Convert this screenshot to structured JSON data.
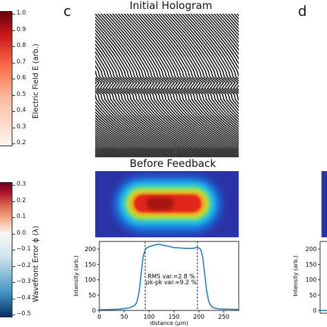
{
  "labels": {
    "panel_c": "c",
    "panel_d": "d",
    "hologram_title": "Initial Hologram",
    "beam_title": "Before Feedback"
  },
  "colorbar_top": {
    "label": "Electric Field E (arb.)",
    "ticks": [
      "1.0",
      "0.9",
      "0.8",
      "0.7",
      "0.6",
      "0.5",
      "0.4",
      "0.3",
      "0.2"
    ],
    "color_low": "#ffffff",
    "color_high": "#67000d"
  },
  "colorbar_bottom": {
    "label": "Wavefront Error ϕ (λ)",
    "ticks": [
      "0.3",
      "0.2",
      "0.1",
      "0.0",
      "−0.1",
      "−0.2",
      "−0.3",
      "−0.4",
      "−0.5"
    ],
    "color_low": "#053061",
    "color_mid": "#f7f7f7",
    "color_high": "#67001f"
  },
  "chart_data": {
    "type": "line",
    "xlabel": "distance (μm)",
    "ylabel": "Intensity (arb.)",
    "xlim": [
      0,
      280
    ],
    "ylim": [
      0,
      225
    ],
    "x_ticks": [
      "0",
      "50",
      "100",
      "150",
      "200",
      "250"
    ],
    "y_ticks": [
      "0",
      "50",
      "100",
      "150",
      "200"
    ],
    "annotation_1": "RMS var.=2.8 %",
    "annotation_2": "pk-pk var.=9.2 %",
    "vlines": [
      92,
      197
    ],
    "line_color": "#1f77b4",
    "x": [
      0,
      20,
      40,
      60,
      70,
      75,
      80,
      84,
      88,
      92,
      96,
      100,
      110,
      120,
      130,
      140,
      150,
      160,
      170,
      180,
      190,
      196,
      200,
      204,
      208,
      212,
      216,
      220,
      225,
      230,
      240,
      260,
      280
    ],
    "y": [
      2,
      3,
      4,
      8,
      15,
      25,
      60,
      120,
      175,
      198,
      205,
      208,
      213,
      216,
      212,
      209,
      205,
      204,
      203,
      202,
      203,
      206,
      204,
      198,
      170,
      115,
      60,
      28,
      14,
      8,
      5,
      4,
      3
    ]
  },
  "right_partial": {
    "y_ticks": [
      "200",
      "150",
      "100",
      "50",
      "0"
    ],
    "ylabel": "Intensity (arb.)"
  }
}
